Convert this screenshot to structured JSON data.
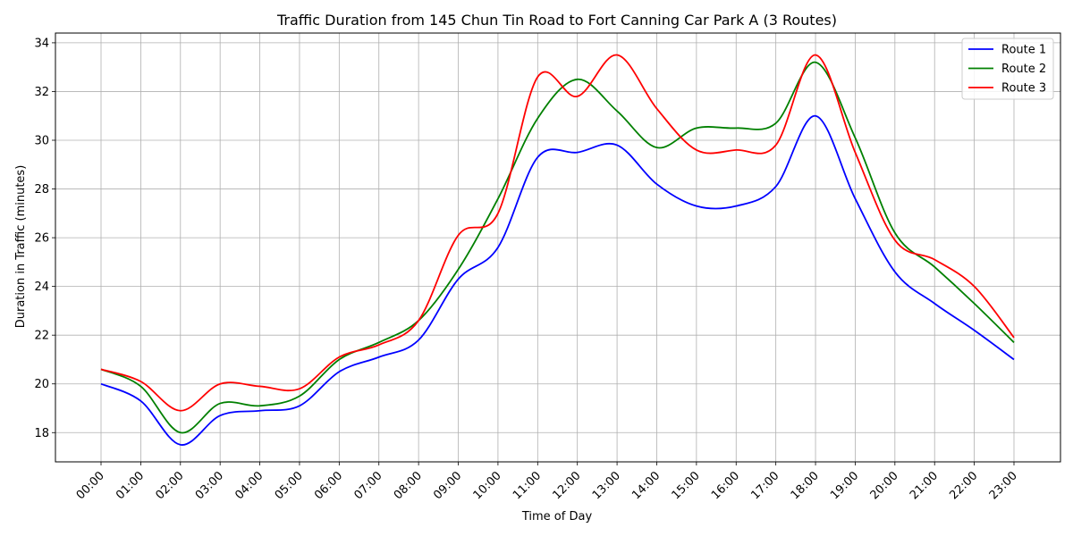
{
  "chart_data": {
    "type": "line",
    "title": "Traffic Duration from 145 Chun Tin Road to Fort Canning Car Park A (3 Routes)",
    "xlabel": "Time of Day",
    "ylabel": "Duration in Traffic (minutes)",
    "categories": [
      "00:00",
      "01:00",
      "02:00",
      "03:00",
      "04:00",
      "05:00",
      "06:00",
      "07:00",
      "08:00",
      "09:00",
      "10:00",
      "11:00",
      "12:00",
      "13:00",
      "14:00",
      "15:00",
      "16:00",
      "17:00",
      "18:00",
      "19:00",
      "20:00",
      "21:00",
      "22:00",
      "23:00"
    ],
    "ylim": [
      16.8,
      34.4
    ],
    "yticks": [
      18,
      20,
      22,
      24,
      26,
      28,
      30,
      32,
      34
    ],
    "grid": true,
    "legend": "top-right",
    "series": [
      {
        "name": "Route 1",
        "color": "#0000ff",
        "values": [
          20.0,
          19.3,
          17.5,
          18.7,
          18.9,
          19.1,
          20.5,
          21.1,
          21.8,
          24.3,
          25.6,
          29.3,
          29.5,
          29.8,
          28.2,
          27.3,
          27.3,
          28.1,
          31.0,
          27.6,
          24.6,
          23.3,
          22.2,
          21.0
        ]
      },
      {
        "name": "Route 2",
        "color": "#008000",
        "values": [
          20.6,
          19.9,
          18.0,
          19.2,
          19.1,
          19.5,
          21.0,
          21.7,
          22.6,
          24.7,
          27.6,
          30.9,
          32.5,
          31.2,
          29.7,
          30.5,
          30.5,
          30.7,
          33.2,
          30.1,
          26.2,
          24.8,
          23.3,
          21.7
        ]
      },
      {
        "name": "Route 3",
        "color": "#ff0000",
        "values": [
          20.6,
          20.1,
          18.9,
          20.0,
          19.9,
          19.8,
          21.1,
          21.6,
          22.6,
          26.1,
          27.0,
          32.6,
          31.8,
          33.5,
          31.3,
          29.6,
          29.6,
          29.8,
          33.5,
          29.5,
          25.9,
          25.1,
          24.0,
          21.9
        ]
      }
    ]
  }
}
